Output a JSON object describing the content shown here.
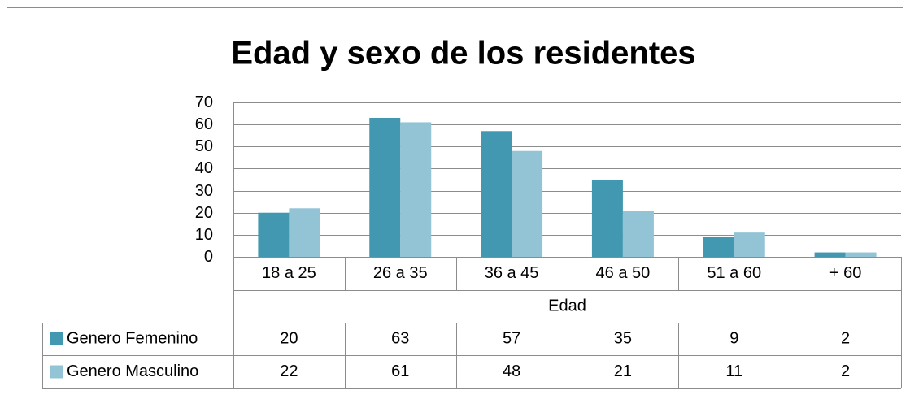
{
  "chart_data": {
    "type": "bar",
    "title": "Edad y sexo de los residentes",
    "x_label": "Edad",
    "categories": [
      "18 a 25",
      "26 a 35",
      "36 a 45",
      "46 a 50",
      "51 a 60",
      "+ 60"
    ],
    "series": [
      {
        "name": "Genero Femenino",
        "color": "#4198b0",
        "values": [
          20,
          63,
          57,
          35,
          9,
          2
        ]
      },
      {
        "name": "Genero Masculino",
        "color": "#93c4d6",
        "values": [
          22,
          61,
          48,
          21,
          11,
          2
        ]
      }
    ],
    "ylim": [
      0,
      70
    ],
    "yticks": [
      0,
      10,
      20,
      30,
      40,
      50,
      60,
      70
    ],
    "grid": true,
    "data_table": true
  }
}
